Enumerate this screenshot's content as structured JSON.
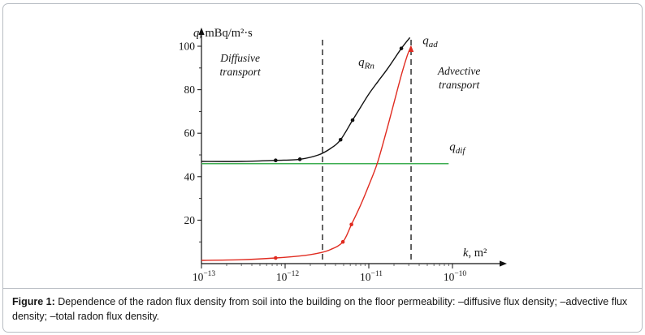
{
  "caption": {
    "label": "Figure 1:",
    "body": "Dependence of the radon flux density from soil into the building on the floor permeability:",
    "item_diffusive": "–diffusive flux density;",
    "item_advective": "–advective flux density;",
    "item_total": "–total radon flux density."
  },
  "chart_data": {
    "type": "line",
    "x_scale": "log10",
    "x_axis_label": {
      "var": "k",
      "rest": ", m²"
    },
    "y_axis_label": {
      "var": "q",
      "rest": ", mBq/m²·s"
    },
    "x_range_exponents": [
      -13,
      -10
    ],
    "x_tick_exponents": [
      -13,
      -12,
      -11,
      -10
    ],
    "ylim": [
      0,
      110
    ],
    "y_ticks": [
      20,
      40,
      60,
      80,
      100
    ],
    "grid": false,
    "legend": "none",
    "dashed_boundaries_x": [
      2.8e-12,
      3.2e-11
    ],
    "region_annotations": [
      {
        "id": "diffusive-region-label",
        "lines": [
          "Diffusive",
          "transport"
        ],
        "x": 2.9e-13,
        "y": 93
      },
      {
        "id": "advective-region-label",
        "lines": [
          "Advective",
          "transport"
        ],
        "x": 1.2e-10,
        "y": 87
      }
    ],
    "curve_labels": [
      {
        "id": "q-rn-curve-label",
        "var": "q",
        "sub": "Rn",
        "x": 7.5e-12,
        "y": 91
      },
      {
        "id": "q-ad-curve-label",
        "var": "q",
        "sub": "ad",
        "x": 4.4e-11,
        "y": 101
      },
      {
        "id": "q-dif-curve-label",
        "var": "q",
        "sub": "dif",
        "x": 9.2e-11,
        "y": 52
      }
    ],
    "series": [
      {
        "id": "q-dif-line",
        "name": "diffusive flux density (q_dif)",
        "color": "#3eae52",
        "points": [
          [
            1e-13,
            46
          ],
          [
            9e-11,
            46
          ]
        ],
        "markers": []
      },
      {
        "id": "q-ad-curve",
        "name": "advective flux density (q_ad)",
        "color": "#e02b20",
        "arrow_end": true,
        "points": [
          [
            1e-13,
            1.5
          ],
          [
            3e-13,
            1.8
          ],
          [
            7.7e-13,
            2.6
          ],
          [
            1.5e-12,
            3.5
          ],
          [
            2.5e-12,
            4.8
          ],
          [
            3.5e-12,
            6.5
          ],
          [
            4.9e-12,
            10
          ],
          [
            6.2e-12,
            18
          ],
          [
            8e-12,
            27
          ],
          [
            1e-11,
            36
          ],
          [
            1.26e-11,
            46
          ],
          [
            1.6e-11,
            60
          ],
          [
            2e-11,
            74
          ],
          [
            2.5e-11,
            88
          ],
          [
            2.9e-11,
            96
          ],
          [
            3.2e-11,
            100
          ]
        ],
        "markers": [
          [
            7.7e-13,
            2.6
          ],
          [
            4.9e-12,
            10
          ],
          [
            6.2e-12,
            18
          ]
        ]
      },
      {
        "id": "q-rn-curve",
        "name": "total radon flux density (q_Rn)",
        "color": "#111111",
        "points": [
          [
            1e-13,
            47
          ],
          [
            3e-13,
            47
          ],
          [
            7.7e-13,
            47.5
          ],
          [
            1.5e-12,
            48
          ],
          [
            2.5e-12,
            50
          ],
          [
            3.5e-12,
            53
          ],
          [
            4.6e-12,
            57
          ],
          [
            6.4e-12,
            66
          ],
          [
            8e-12,
            72
          ],
          [
            1e-11,
            78
          ],
          [
            1.3e-11,
            84
          ],
          [
            1.7e-11,
            90
          ],
          [
            2.45e-11,
            99
          ],
          [
            3.1e-11,
            104
          ]
        ],
        "markers": [
          [
            7.7e-13,
            47.5
          ],
          [
            1.5e-12,
            48
          ],
          [
            4.6e-12,
            57
          ],
          [
            6.4e-12,
            66
          ],
          [
            2.45e-11,
            99
          ]
        ]
      }
    ]
  }
}
